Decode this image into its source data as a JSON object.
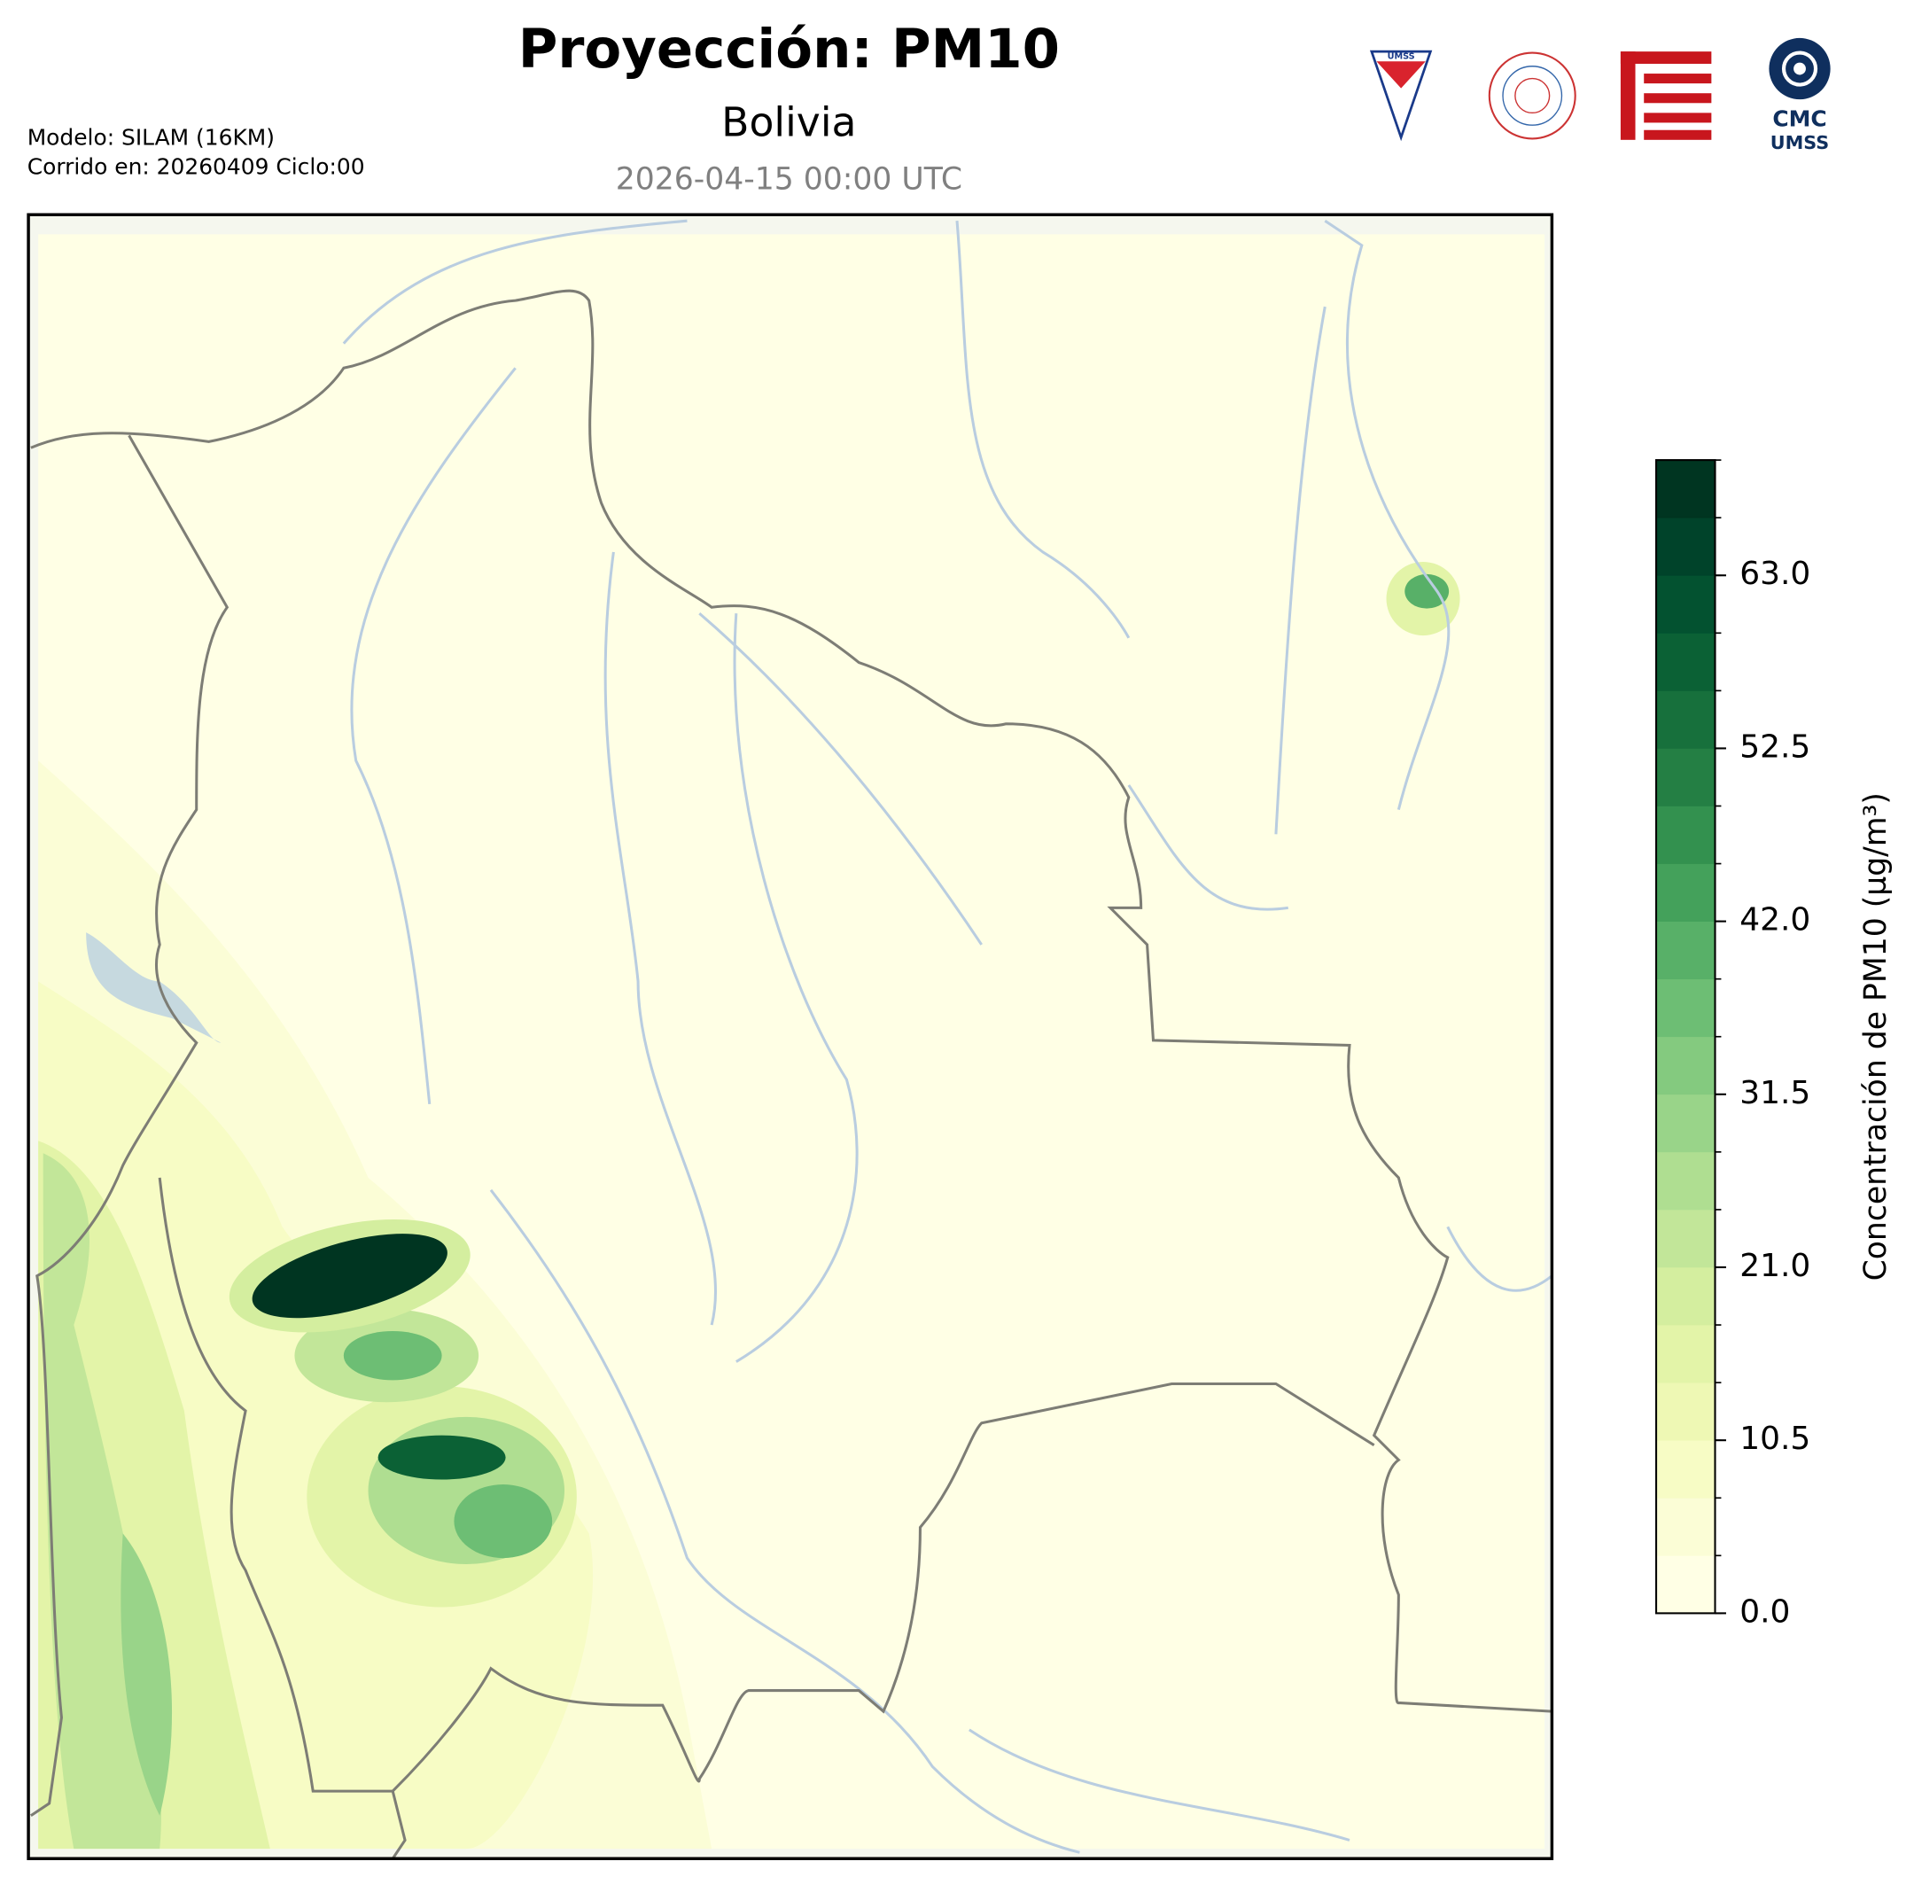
{
  "header": {
    "title": "Proyección: PM10",
    "subtitle": "Bolivia",
    "valid_time": "2026-04-15 00:00 UTC",
    "model": "Modelo: SILAM (16KM)",
    "run": "Corrido en: 20260409 Ciclo:00"
  },
  "logos": {
    "umss_shield": "UMSS",
    "cmc_top": "CMC",
    "cmc_bottom": "UMSS"
  },
  "chart_data": {
    "type": "contour-map",
    "colorbar_label": "Concentración de PM10 (µg/m³)",
    "clim": [
      0,
      70
    ],
    "levels": [
      0,
      3.5,
      7,
      10.5,
      14,
      17.5,
      21,
      24.5,
      28,
      31.5,
      35,
      38.5,
      42,
      45.5,
      49,
      52.5,
      56,
      59.5,
      63,
      66.5,
      70
    ],
    "colors": [
      "#ffffe5",
      "#fbfdd6",
      "#f7fcc5",
      "#eef8b4",
      "#e3f4a8",
      "#d4ee9f",
      "#c2e699",
      "#afde91",
      "#99d489",
      "#84ca7f",
      "#6dbe74",
      "#58b068",
      "#44a15b",
      "#33914f",
      "#247f44",
      "#17703c",
      "#0b6135",
      "#035230",
      "#00432a",
      "#003521"
    ],
    "ticks": [
      {
        "value": 0,
        "label": "0.0"
      },
      10.5,
      {
        "value": 21,
        "label": "21.0"
      },
      31.5,
      {
        "value": 42,
        "label": "42.0"
      },
      52.5,
      {
        "value": 63,
        "label": "63.0"
      }
    ]
  }
}
